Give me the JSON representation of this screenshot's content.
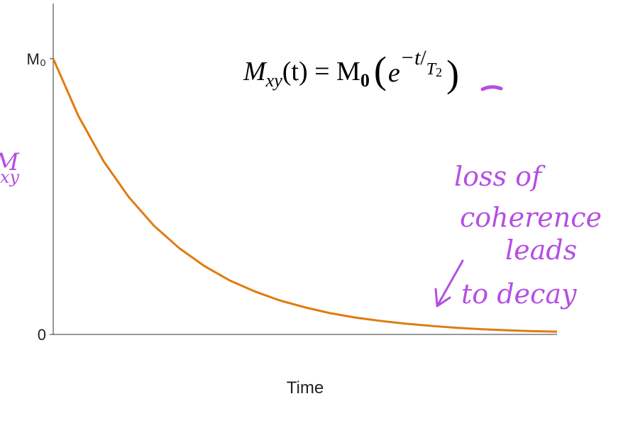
{
  "chart_data": {
    "type": "line",
    "x_label": "Time",
    "y_label": "M",
    "y_label_sub": "xy",
    "equation": [
      "M",
      "xy",
      "(t) = M",
      "0",
      "(",
      "e",
      "−t",
      "/",
      "T",
      "2",
      ")"
    ],
    "annotation": [
      "loss of",
      "coherence",
      "leads",
      "to decay"
    ],
    "x": [
      0,
      0.5,
      1,
      1.5,
      2,
      2.5,
      3,
      3.5,
      4,
      4.5,
      5,
      5.5,
      6,
      6.5,
      7,
      7.5,
      8,
      8.5,
      9,
      9.5,
      10
    ],
    "series": [
      {
        "name": "Mxy",
        "color": "#e07b10",
        "values": [
          1,
          0.792,
          0.628,
          0.498,
          0.394,
          0.313,
          0.248,
          0.196,
          0.156,
          0.123,
          0.098,
          0.077,
          0.061,
          0.049,
          0.039,
          0.031,
          0.024,
          0.019,
          0.015,
          0.012,
          0.01
        ]
      }
    ],
    "xlim": [
      0,
      10
    ],
    "ylim": [
      0,
      1.2
    ],
    "yticks": [
      0,
      {
        "value": 1,
        "label": "M₀"
      }
    ],
    "annotation_color": "#b54fe3",
    "grid": false
  }
}
